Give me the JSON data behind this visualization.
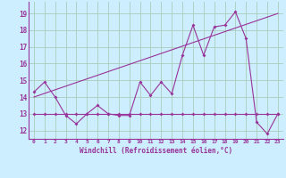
{
  "title": "",
  "xlabel": "Windchill (Refroidissement éolien,°C)",
  "ylabel": "",
  "background_color": "#cceeff",
  "grid_color": "#aaccbb",
  "line_color": "#993399",
  "x_ticks": [
    0,
    1,
    2,
    3,
    4,
    5,
    6,
    7,
    8,
    9,
    10,
    11,
    12,
    13,
    14,
    15,
    16,
    17,
    18,
    19,
    20,
    21,
    22,
    23
  ],
  "y_ticks": [
    12,
    13,
    14,
    15,
    16,
    17,
    18,
    19
  ],
  "ylim": [
    11.5,
    19.7
  ],
  "xlim": [
    -0.5,
    23.5
  ],
  "series_main": [
    14.3,
    14.9,
    14.0,
    12.9,
    12.4,
    13.0,
    13.5,
    13.0,
    12.9,
    12.9,
    14.9,
    14.1,
    14.9,
    14.2,
    16.5,
    18.3,
    16.5,
    18.2,
    18.3,
    19.1,
    17.5,
    12.5,
    11.8,
    13.0
  ],
  "series_flat": [
    13.0,
    13.0,
    13.0,
    13.0,
    13.0,
    13.0,
    13.0,
    13.0,
    13.0,
    13.0,
    13.0,
    13.0,
    13.0,
    13.0,
    13.0,
    13.0,
    13.0,
    13.0,
    13.0,
    13.0,
    13.0,
    13.0,
    13.0,
    13.0
  ],
  "trend_x": [
    0,
    23
  ],
  "trend_y": [
    14.0,
    19.0
  ]
}
